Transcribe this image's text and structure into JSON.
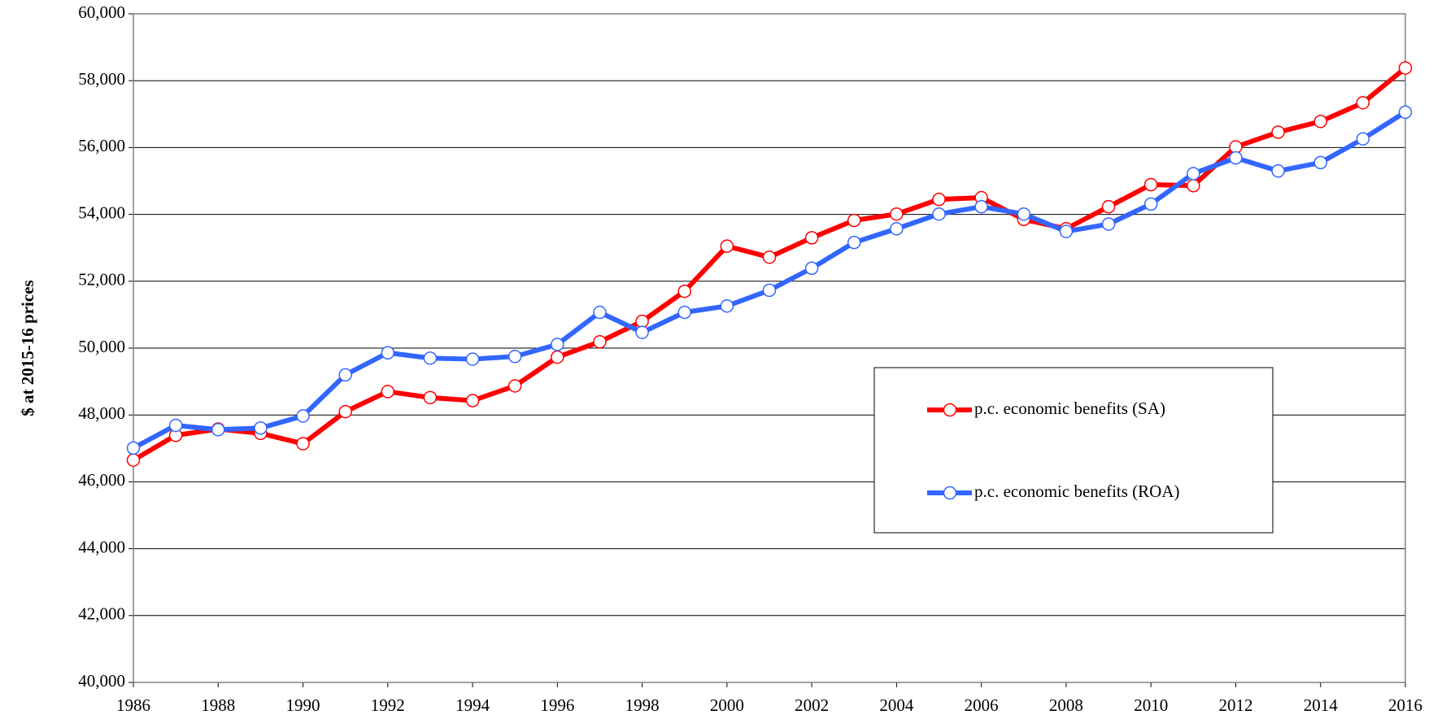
{
  "chart_data": {
    "type": "line",
    "y_label": "$ at 2015-16 prices",
    "x": [
      1986,
      1987,
      1988,
      1989,
      1990,
      1991,
      1992,
      1993,
      1994,
      1995,
      1996,
      1997,
      1998,
      1999,
      2000,
      2001,
      2002,
      2003,
      2004,
      2005,
      2006,
      2007,
      2008,
      2009,
      2010,
      2011,
      2012,
      2013,
      2014,
      2015,
      2016
    ],
    "series": [
      {
        "name": "p.c. economic benefits (SA)",
        "color": "#ff0000",
        "values": [
          46650,
          47390,
          47580,
          47450,
          47140,
          48100,
          48700,
          48520,
          48430,
          48870,
          49730,
          50190,
          50800,
          51700,
          53050,
          52720,
          53300,
          53820,
          54010,
          54450,
          54500,
          53850,
          53570,
          54230,
          54890,
          54860,
          56020,
          56460,
          56780,
          57340,
          58380
        ]
      },
      {
        "name": "p.c. economic benefits (ROA)",
        "color": "#3366ff",
        "values": [
          47010,
          47690,
          47560,
          47610,
          47970,
          49200,
          49860,
          49700,
          49670,
          49750,
          50110,
          51070,
          50470,
          51070,
          51260,
          51730,
          52390,
          53160,
          53570,
          54010,
          54230,
          54010,
          53490,
          53710,
          54310,
          55220,
          55690,
          55300,
          55550,
          56260,
          57060
        ]
      }
    ],
    "xlim": [
      1986,
      2016
    ],
    "xticks": [
      1986,
      1988,
      1990,
      1992,
      1994,
      1996,
      1998,
      2000,
      2002,
      2004,
      2006,
      2008,
      2010,
      2012,
      2014,
      2016
    ],
    "ylim": [
      40000,
      60000
    ],
    "yticks": [
      {
        "value": 40000,
        "label": "40,000"
      },
      {
        "value": 42000,
        "label": "42,000"
      },
      {
        "value": 44000,
        "label": "44,000"
      },
      {
        "value": 46000,
        "label": "46,000"
      },
      {
        "value": 48000,
        "label": "48,000"
      },
      {
        "value": 50000,
        "label": "50,000"
      },
      {
        "value": 52000,
        "label": "52,000"
      },
      {
        "value": 54000,
        "label": "54,000"
      },
      {
        "value": 56000,
        "label": "56,000"
      },
      {
        "value": 58000,
        "label": "58,000"
      },
      {
        "value": 60000,
        "label": "60,000"
      }
    ],
    "grid": true
  }
}
